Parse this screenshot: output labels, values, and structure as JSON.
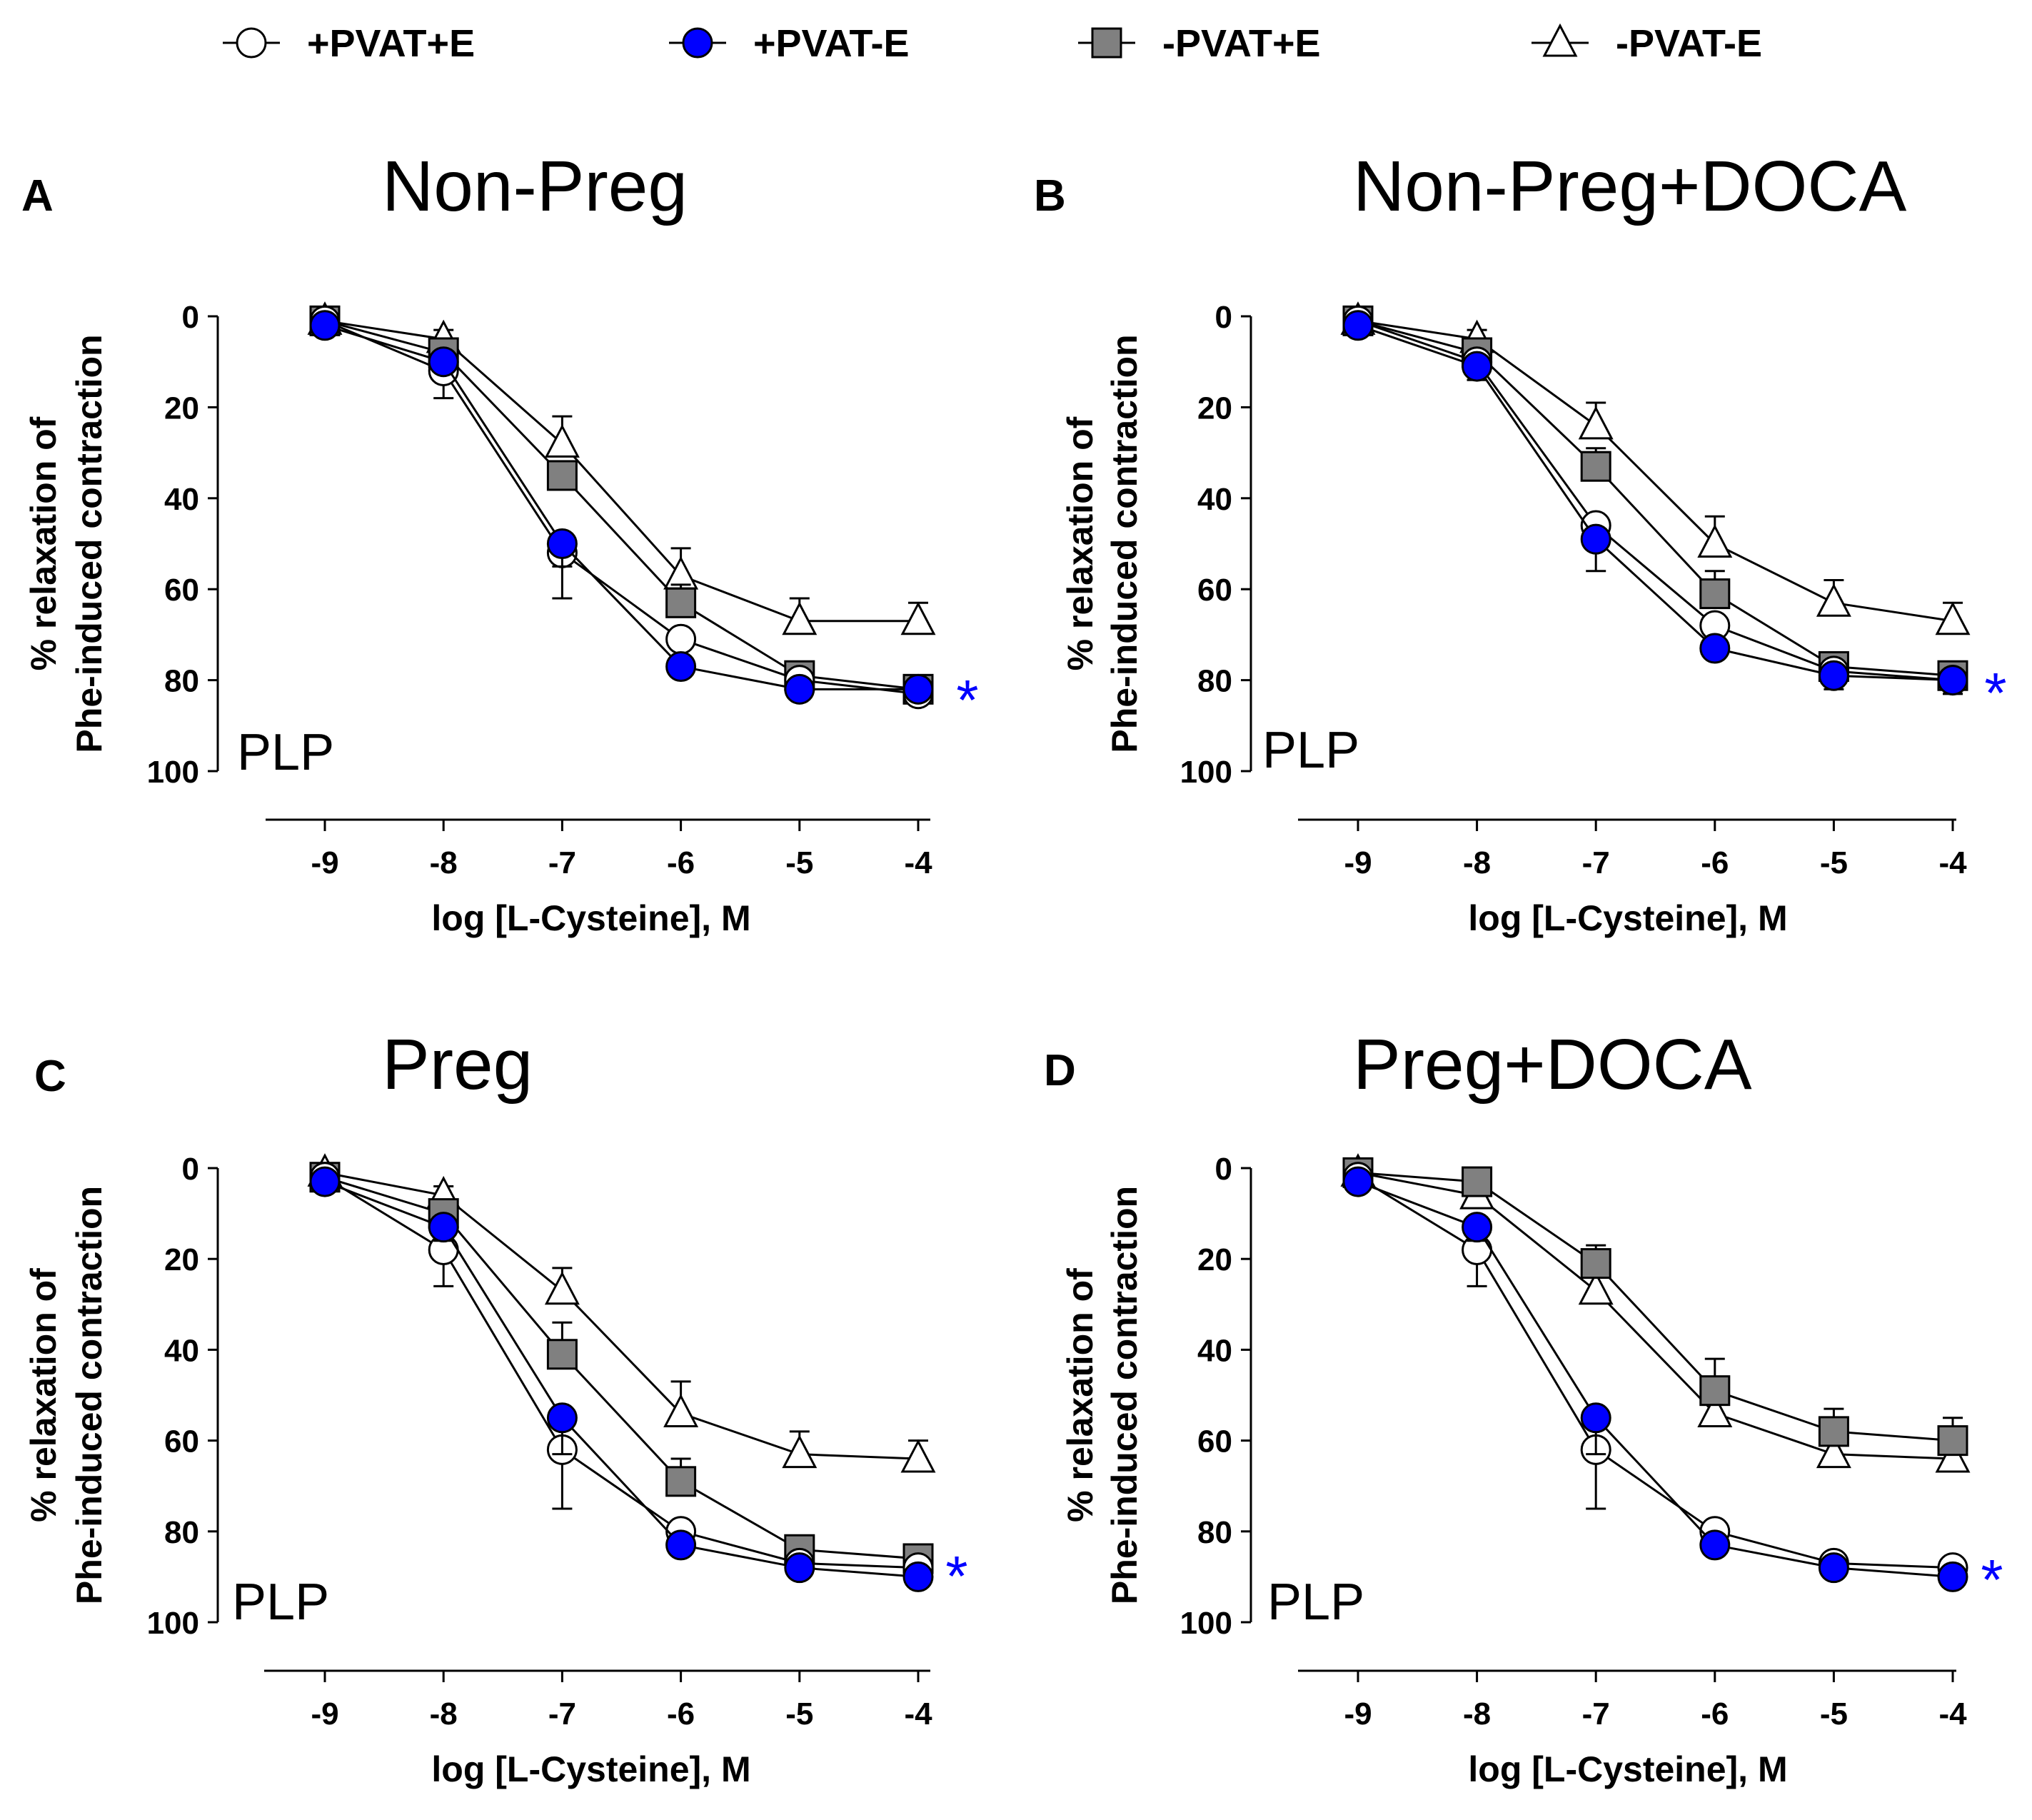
{
  "chart_data": [
    {
      "type": "line",
      "panel_letter": "A",
      "title": "Non-Preg",
      "xlabel": "log [L-Cysteine], M",
      "ylabel_line1": "% relaxation of",
      "ylabel_line2": "Phe-induced contraction",
      "annotation": "PLP",
      "significance": "*",
      "x": [
        -9,
        -8,
        -7,
        -6,
        -5,
        -4
      ],
      "xticks": [
        "-9",
        "-8",
        "-7",
        "-6",
        "-5",
        "-4"
      ],
      "ylim": [
        0,
        100
      ],
      "yticks": [
        "0",
        "20",
        "40",
        "60",
        "80",
        "100"
      ],
      "y_inverted": true,
      "series": [
        {
          "name": "+PVAT+E",
          "values": [
            1,
            12,
            52,
            71,
            80,
            83
          ],
          "errors": [
            1,
            6,
            10,
            2,
            2,
            2
          ]
        },
        {
          "name": "+PVAT-E",
          "values": [
            2,
            10,
            50,
            77,
            82,
            82
          ],
          "errors": [
            1,
            2,
            5,
            2,
            2,
            2
          ]
        },
        {
          "name": "-PVAT+E",
          "values": [
            1,
            8,
            35,
            63,
            79,
            82
          ],
          "errors": [
            1,
            2,
            3,
            4,
            3,
            2
          ]
        },
        {
          "name": "-PVAT-E",
          "values": [
            1,
            5,
            28,
            57,
            67,
            67
          ],
          "errors": [
            1,
            2,
            6,
            6,
            5,
            4
          ]
        }
      ]
    },
    {
      "type": "line",
      "panel_letter": "B",
      "title": "Non-Preg+DOCA",
      "xlabel": "log [L-Cysteine], M",
      "ylabel_line1": "% relaxation of",
      "ylabel_line2": "Phe-induced contraction",
      "annotation": "PLP",
      "significance": "*",
      "x": [
        -9,
        -8,
        -7,
        -6,
        -5,
        -4
      ],
      "xticks": [
        "-9",
        "-8",
        "-7",
        "-6",
        "-5",
        "-4"
      ],
      "ylim": [
        0,
        100
      ],
      "yticks": [
        "0",
        "20",
        "40",
        "60",
        "80",
        "100"
      ],
      "y_inverted": true,
      "series": [
        {
          "name": "+PVAT+E",
          "values": [
            1,
            10,
            46,
            68,
            78,
            80
          ],
          "errors": [
            1,
            4,
            4,
            3,
            3,
            3
          ]
        },
        {
          "name": "+PVAT-E",
          "values": [
            2,
            11,
            49,
            73,
            79,
            80
          ],
          "errors": [
            1,
            3,
            7,
            2,
            3,
            3
          ]
        },
        {
          "name": "-PVAT+E",
          "values": [
            1,
            8,
            33,
            61,
            77,
            79
          ],
          "errors": [
            1,
            2,
            4,
            5,
            3,
            2
          ]
        },
        {
          "name": "-PVAT-E",
          "values": [
            1,
            5,
            24,
            50,
            63,
            67
          ],
          "errors": [
            1,
            2,
            5,
            6,
            5,
            4
          ]
        }
      ]
    },
    {
      "type": "line",
      "panel_letter": "C",
      "title": "Preg",
      "xlabel": "log [L-Cysteine], M",
      "ylabel_line1": "% relaxation of",
      "ylabel_line2": "Phe-induced contraction",
      "annotation": "PLP",
      "significance": "*",
      "x": [
        -9,
        -8,
        -7,
        -6,
        -5,
        -4
      ],
      "xticks": [
        "-9",
        "-8",
        "-7",
        "-6",
        "-5",
        "-4"
      ],
      "ylim": [
        0,
        100
      ],
      "yticks": [
        "0",
        "20",
        "40",
        "60",
        "80",
        "100"
      ],
      "y_inverted": true,
      "series": [
        {
          "name": "+PVAT+E",
          "values": [
            2,
            18,
            62,
            80,
            87,
            88
          ],
          "errors": [
            1,
            8,
            13,
            3,
            2,
            2
          ]
        },
        {
          "name": "+PVAT-E",
          "values": [
            3,
            13,
            55,
            83,
            88,
            90
          ],
          "errors": [
            1,
            3,
            8,
            2,
            2,
            2
          ]
        },
        {
          "name": "-PVAT+E",
          "values": [
            2,
            10,
            41,
            69,
            84,
            86
          ],
          "errors": [
            1,
            2,
            7,
            5,
            3,
            2
          ]
        },
        {
          "name": "-PVAT-E",
          "values": [
            1,
            6,
            27,
            54,
            63,
            64
          ],
          "errors": [
            1,
            2,
            5,
            7,
            5,
            4
          ]
        }
      ]
    },
    {
      "type": "line",
      "panel_letter": "D",
      "title": "Preg+DOCA",
      "xlabel": "log [L-Cysteine], M",
      "ylabel_line1": "% relaxation of",
      "ylabel_line2": "Phe-induced contraction",
      "annotation": "PLP",
      "significance": "*",
      "x": [
        -9,
        -8,
        -7,
        -6,
        -5,
        -4
      ],
      "xticks": [
        "-9",
        "-8",
        "-7",
        "-6",
        "-5",
        "-4"
      ],
      "ylim": [
        0,
        100
      ],
      "yticks": [
        "0",
        "20",
        "40",
        "60",
        "80",
        "100"
      ],
      "y_inverted": true,
      "series": [
        {
          "name": "+PVAT+E",
          "values": [
            2,
            18,
            62,
            80,
            87,
            88
          ],
          "errors": [
            1,
            8,
            13,
            3,
            2,
            2
          ]
        },
        {
          "name": "+PVAT-E",
          "values": [
            3,
            13,
            55,
            83,
            88,
            90
          ],
          "errors": [
            1,
            3,
            8,
            2,
            2,
            2
          ]
        },
        {
          "name": "-PVAT+E",
          "values": [
            1,
            3,
            21,
            49,
            58,
            60
          ],
          "errors": [
            1,
            2,
            4,
            7,
            5,
            5
          ]
        },
        {
          "name": "-PVAT-E",
          "values": [
            1,
            6,
            27,
            54,
            63,
            64
          ],
          "errors": [
            1,
            2,
            5,
            7,
            5,
            4
          ]
        }
      ]
    }
  ],
  "legend": [
    {
      "name": "+PVAT+E",
      "marker": "circle",
      "fill": "#ffffff"
    },
    {
      "name": "+PVAT-E",
      "marker": "circle",
      "fill": "#0000ff"
    },
    {
      "name": "-PVAT+E",
      "marker": "square",
      "fill": "#808080"
    },
    {
      "name": "-PVAT-E",
      "marker": "triangle",
      "fill": "#ffffff"
    }
  ],
  "colors": {
    "line": "#000000",
    "significance": "#0000ff"
  }
}
